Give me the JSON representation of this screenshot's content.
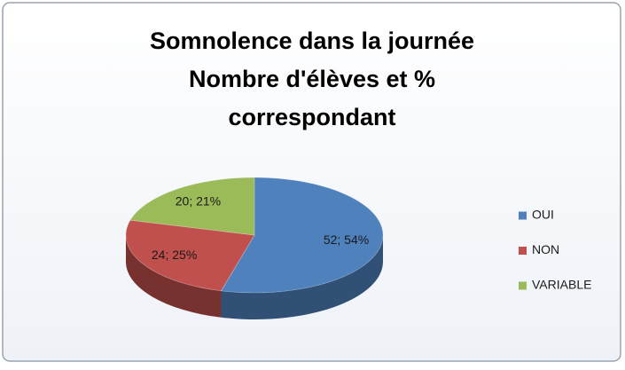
{
  "chart_data": {
    "type": "pie3d",
    "title": [
      "Somnolence dans la journée",
      "Nombre d'élèves et %",
      "correspondant"
    ],
    "categories": [
      "OUI",
      "NON",
      "VARIABLE"
    ],
    "values": [
      52,
      24,
      20
    ],
    "value_labels": [
      "52; 54%",
      "24; 25%",
      "20; 21%"
    ],
    "colors": [
      "#4f81bd",
      "#c0504d",
      "#9bbb59"
    ],
    "legend": "right"
  }
}
